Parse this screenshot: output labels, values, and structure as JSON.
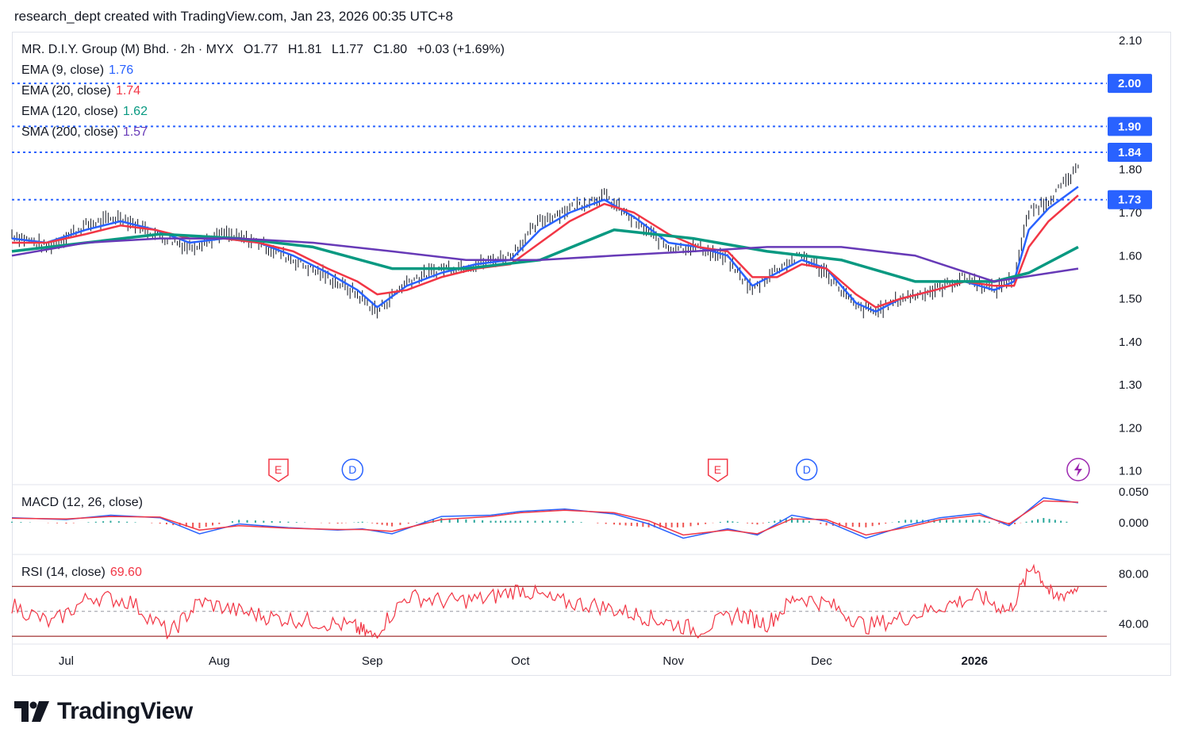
{
  "header": {
    "text": "research_dept created with TradingView.com, Jan 23, 2026 00:35 UTC+8"
  },
  "legend": {
    "title": "MR. D.I.Y. Group (M) Bhd. · 2h · MYX",
    "open": "O1.77",
    "high": "H1.81",
    "low": "L1.77",
    "close": "C1.80",
    "change": "+0.03 (+1.69%)",
    "ema9_label": "EMA (9, close)",
    "ema9_value": "1.76",
    "ema20_label": "EMA (20, close)",
    "ema20_value": "1.74",
    "ema120_label": "EMA (120, close)",
    "ema120_value": "1.62",
    "sma200_label": "SMA (200, close)",
    "sma200_value": "1.57",
    "macd_label": "MACD (12, 26, close)",
    "rsi_label": "RSI (14, close)",
    "rsi_value": "69.60"
  },
  "colors": {
    "ema9": "#2962ff",
    "ema20": "#f23645",
    "ema120": "#089981",
    "sma200": "#673ab7",
    "bar": "#131722",
    "level": "#2962ff",
    "macd": "#2962ff",
    "signal": "#f23645",
    "rsi": "#f23645",
    "rsi_band": "#8b0000",
    "earnings": "#f23645",
    "dividend": "#2962ff",
    "split": "#9c27b0"
  },
  "events": {
    "earnings_label": "E",
    "dividend_label": "D",
    "markers": [
      {
        "type": "earnings",
        "date": "2025-08-13"
      },
      {
        "type": "dividend",
        "date": "2025-08-28"
      },
      {
        "type": "earnings",
        "date": "2025-11-10"
      },
      {
        "type": "dividend",
        "date": "2025-11-28"
      },
      {
        "type": "split-icon",
        "date": "2026-01-22"
      }
    ]
  },
  "branding": {
    "logo_text": "TradingView"
  },
  "chart_data": {
    "type": "line",
    "title": "MR. D.I.Y. Group (M) Bhd. · 2h · MYX",
    "x_start": "2025-06-20",
    "x_end": "2026-01-22",
    "x_ticks": [
      {
        "label": "Jul",
        "date": "2025-07-01"
      },
      {
        "label": "Aug",
        "date": "2025-08-01"
      },
      {
        "label": "Sep",
        "date": "2025-09-01"
      },
      {
        "label": "Oct",
        "date": "2025-10-01"
      },
      {
        "label": "Nov",
        "date": "2025-11-01"
      },
      {
        "label": "Dec",
        "date": "2025-12-01"
      },
      {
        "label": "2026",
        "date": "2026-01-01"
      }
    ],
    "price_axis": {
      "ylim": [
        1.07,
        2.12
      ],
      "ticks": [
        "2.10",
        "1.80",
        "1.70",
        "1.60",
        "1.50",
        "1.40",
        "1.30",
        "1.20",
        "1.10"
      ]
    },
    "levels": [
      2.0,
      1.9,
      1.84,
      1.73
    ],
    "level_labels": [
      "2.00",
      "1.90",
      "1.84",
      "1.73"
    ],
    "series": [
      {
        "name": "EMA (9, close)",
        "x": [
          "2025-06-20",
          "2025-06-27",
          "2025-07-05",
          "2025-07-12",
          "2025-07-19",
          "2025-07-26",
          "2025-08-02",
          "2025-08-09",
          "2025-08-16",
          "2025-08-23",
          "2025-08-29",
          "2025-09-02",
          "2025-09-08",
          "2025-09-15",
          "2025-09-22",
          "2025-09-29",
          "2025-10-05",
          "2025-10-11",
          "2025-10-18",
          "2025-10-24",
          "2025-10-31",
          "2025-11-06",
          "2025-11-12",
          "2025-11-17",
          "2025-11-22",
          "2025-11-27",
          "2025-12-02",
          "2025-12-08",
          "2025-12-12",
          "2025-12-17",
          "2025-12-24",
          "2025-12-30",
          "2026-01-05",
          "2026-01-09",
          "2026-01-12",
          "2026-01-16",
          "2026-01-22"
        ],
        "values": [
          1.64,
          1.63,
          1.66,
          1.68,
          1.66,
          1.63,
          1.64,
          1.63,
          1.6,
          1.56,
          1.52,
          1.48,
          1.53,
          1.56,
          1.58,
          1.59,
          1.66,
          1.7,
          1.73,
          1.69,
          1.63,
          1.62,
          1.6,
          1.53,
          1.56,
          1.59,
          1.57,
          1.49,
          1.47,
          1.5,
          1.52,
          1.54,
          1.52,
          1.54,
          1.66,
          1.71,
          1.76
        ]
      },
      {
        "name": "EMA (20, close)",
        "x": [
          "2025-06-20",
          "2025-06-27",
          "2025-07-05",
          "2025-07-12",
          "2025-07-19",
          "2025-07-26",
          "2025-08-02",
          "2025-08-09",
          "2025-08-16",
          "2025-08-23",
          "2025-08-29",
          "2025-09-02",
          "2025-09-08",
          "2025-09-15",
          "2025-09-22",
          "2025-09-29",
          "2025-10-05",
          "2025-10-11",
          "2025-10-18",
          "2025-10-24",
          "2025-10-31",
          "2025-11-06",
          "2025-11-12",
          "2025-11-17",
          "2025-11-22",
          "2025-11-27",
          "2025-12-02",
          "2025-12-08",
          "2025-12-12",
          "2025-12-17",
          "2025-12-24",
          "2025-12-30",
          "2026-01-05",
          "2026-01-09",
          "2026-01-12",
          "2026-01-16",
          "2026-01-22"
        ],
        "values": [
          1.63,
          1.63,
          1.65,
          1.67,
          1.66,
          1.64,
          1.64,
          1.63,
          1.61,
          1.57,
          1.54,
          1.51,
          1.52,
          1.55,
          1.57,
          1.58,
          1.63,
          1.68,
          1.72,
          1.7,
          1.65,
          1.62,
          1.61,
          1.55,
          1.55,
          1.58,
          1.57,
          1.51,
          1.48,
          1.5,
          1.52,
          1.54,
          1.53,
          1.53,
          1.62,
          1.68,
          1.74
        ]
      },
      {
        "name": "EMA (120, close)",
        "x": [
          "2025-06-20",
          "2025-07-05",
          "2025-07-20",
          "2025-08-05",
          "2025-08-20",
          "2025-09-05",
          "2025-09-20",
          "2025-10-05",
          "2025-10-20",
          "2025-11-05",
          "2025-11-20",
          "2025-12-05",
          "2025-12-20",
          "2026-01-05",
          "2026-01-12",
          "2026-01-22"
        ],
        "values": [
          1.61,
          1.63,
          1.65,
          1.64,
          1.62,
          1.57,
          1.57,
          1.59,
          1.66,
          1.64,
          1.61,
          1.59,
          1.54,
          1.54,
          1.56,
          1.62
        ]
      },
      {
        "name": "SMA (200, close)",
        "x": [
          "2025-06-20",
          "2025-07-05",
          "2025-07-20",
          "2025-08-05",
          "2025-08-20",
          "2025-09-05",
          "2025-09-20",
          "2025-10-05",
          "2025-10-20",
          "2025-11-05",
          "2025-11-20",
          "2025-12-05",
          "2025-12-20",
          "2026-01-05",
          "2026-01-22"
        ],
        "values": [
          1.6,
          1.63,
          1.64,
          1.64,
          1.63,
          1.61,
          1.59,
          1.59,
          1.6,
          1.61,
          1.62,
          1.62,
          1.6,
          1.54,
          1.57
        ]
      },
      {
        "name": "Price",
        "x": [
          "2025-06-20",
          "2025-06-27",
          "2025-07-05",
          "2025-07-12",
          "2025-07-19",
          "2025-07-26",
          "2025-08-02",
          "2025-08-09",
          "2025-08-16",
          "2025-08-23",
          "2025-08-29",
          "2025-09-02",
          "2025-09-08",
          "2025-09-15",
          "2025-09-22",
          "2025-09-29",
          "2025-10-05",
          "2025-10-11",
          "2025-10-18",
          "2025-10-24",
          "2025-10-31",
          "2025-11-06",
          "2025-11-12",
          "2025-11-17",
          "2025-11-22",
          "2025-11-27",
          "2025-12-02",
          "2025-12-08",
          "2025-12-12",
          "2025-12-17",
          "2025-12-24",
          "2025-12-30",
          "2026-01-05",
          "2026-01-09",
          "2026-01-12",
          "2026-01-16",
          "2026-01-22"
        ],
        "values": [
          1.65,
          1.62,
          1.67,
          1.69,
          1.65,
          1.62,
          1.65,
          1.63,
          1.59,
          1.55,
          1.51,
          1.47,
          1.54,
          1.57,
          1.58,
          1.6,
          1.68,
          1.71,
          1.74,
          1.68,
          1.62,
          1.62,
          1.59,
          1.52,
          1.57,
          1.6,
          1.56,
          1.48,
          1.47,
          1.5,
          1.52,
          1.55,
          1.52,
          1.55,
          1.7,
          1.73,
          1.8
        ]
      }
    ],
    "macd": {
      "label": "MACD (12, 26, close)",
      "ylim": [
        -0.05,
        0.06
      ],
      "ticks": [
        "0.050",
        "0.000"
      ],
      "x": [
        "2025-06-20",
        "2025-07-01",
        "2025-07-10",
        "2025-07-20",
        "2025-07-28",
        "2025-08-05",
        "2025-08-15",
        "2025-08-25",
        "2025-08-30",
        "2025-09-05",
        "2025-09-15",
        "2025-09-25",
        "2025-10-01",
        "2025-10-10",
        "2025-10-20",
        "2025-10-27",
        "2025-11-03",
        "2025-11-12",
        "2025-11-18",
        "2025-11-25",
        "2025-12-02",
        "2025-12-10",
        "2025-12-18",
        "2025-12-25",
        "2026-01-02",
        "2026-01-08",
        "2026-01-15",
        "2026-01-22"
      ],
      "macd_values": [
        0.008,
        0.005,
        0.012,
        0.008,
        -0.018,
        -0.002,
        -0.008,
        -0.012,
        -0.01,
        -0.018,
        0.01,
        0.012,
        0.018,
        0.022,
        0.014,
        -0.002,
        -0.025,
        -0.01,
        -0.02,
        0.012,
        0.002,
        -0.025,
        -0.005,
        0.008,
        0.015,
        -0.005,
        0.04,
        0.032
      ],
      "signal_values": [
        0.007,
        0.006,
        0.01,
        0.009,
        -0.012,
        -0.005,
        -0.009,
        -0.011,
        -0.011,
        -0.014,
        0.005,
        0.01,
        0.016,
        0.02,
        0.016,
        0.003,
        -0.02,
        -0.012,
        -0.018,
        0.006,
        0.005,
        -0.02,
        -0.008,
        0.005,
        0.012,
        -0.002,
        0.035,
        0.033
      ]
    },
    "rsi": {
      "label": "RSI (14, close)",
      "ylim": [
        25,
        95
      ],
      "ticks": [
        "80.00",
        "40.00"
      ],
      "upper": 70,
      "lower": 30,
      "mid": 50,
      "x": [
        "2025-06-20",
        "2025-06-28",
        "2025-07-06",
        "2025-07-14",
        "2025-07-22",
        "2025-07-28",
        "2025-08-05",
        "2025-08-12",
        "2025-08-20",
        "2025-08-28",
        "2025-09-01",
        "2025-09-08",
        "2025-09-16",
        "2025-09-24",
        "2025-10-01",
        "2025-10-08",
        "2025-10-16",
        "2025-10-24",
        "2025-10-30",
        "2025-11-06",
        "2025-11-14",
        "2025-11-20",
        "2025-11-26",
        "2025-12-03",
        "2025-12-10",
        "2025-12-18",
        "2025-12-26",
        "2026-01-02",
        "2026-01-08",
        "2026-01-13",
        "2026-01-17",
        "2026-01-22"
      ],
      "values": [
        55,
        40,
        62,
        58,
        32,
        58,
        50,
        45,
        42,
        38,
        30,
        62,
        58,
        60,
        68,
        58,
        55,
        48,
        42,
        35,
        48,
        40,
        62,
        55,
        38,
        45,
        55,
        62,
        50,
        88,
        60,
        69.6
      ]
    }
  }
}
